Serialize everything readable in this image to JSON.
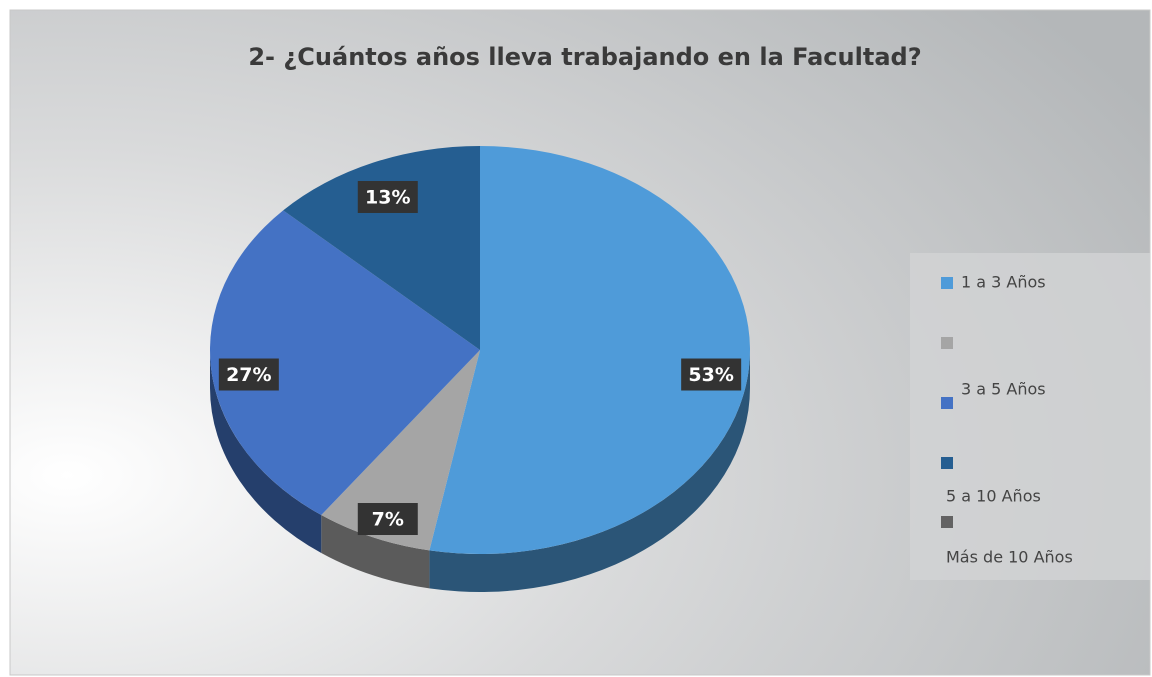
{
  "chart_data": {
    "type": "pie",
    "title": "2- ¿Cuántos años lleva trabajando en la Facultad?",
    "categories": [
      "1 a 3 Años",
      null,
      "3 a 5 Años",
      "5 a 10 Años",
      "Más de 10 Años"
    ],
    "values": [
      53,
      7,
      27,
      13,
      0
    ],
    "value_labels": [
      "53%",
      "7%",
      "27%",
      "13%",
      null
    ],
    "colors": [
      "#4f9bd9",
      "#a5a5a5",
      "#4472c4",
      "#255e91",
      "#636363"
    ],
    "legend": "right"
  }
}
